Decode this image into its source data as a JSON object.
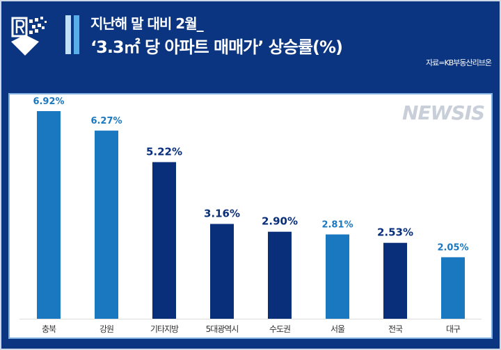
{
  "title_line1": "지난해 말 대비 2월_",
  "title_line2": "‘3.3㎡ 당 아파트 매매가’ 상승률(%)",
  "source": "자료=KB부동산리브온",
  "watermark": "NEWSIS",
  "colors": {
    "background": "#0b3580",
    "light_bar": "#1a78c0",
    "dark_bar": "#0a2f7a"
  },
  "chart_data": {
    "type": "bar",
    "categories": [
      "충북",
      "강원",
      "기타지방",
      "5대광역시",
      "수도권",
      "서울",
      "전국",
      "대구"
    ],
    "values": [
      6.92,
      6.27,
      5.22,
      3.16,
      2.9,
      2.81,
      2.53,
      2.05
    ],
    "data_labels": [
      "6.92%",
      "6.27%",
      "5.22%",
      "3.16%",
      "2.90%",
      "2.81%",
      "2.53%",
      "2.05%"
    ],
    "bar_colors": [
      "light",
      "light",
      "dark",
      "dark",
      "dark",
      "light",
      "dark",
      "light"
    ],
    "ylim": [
      0,
      7.5
    ],
    "grid": false
  }
}
